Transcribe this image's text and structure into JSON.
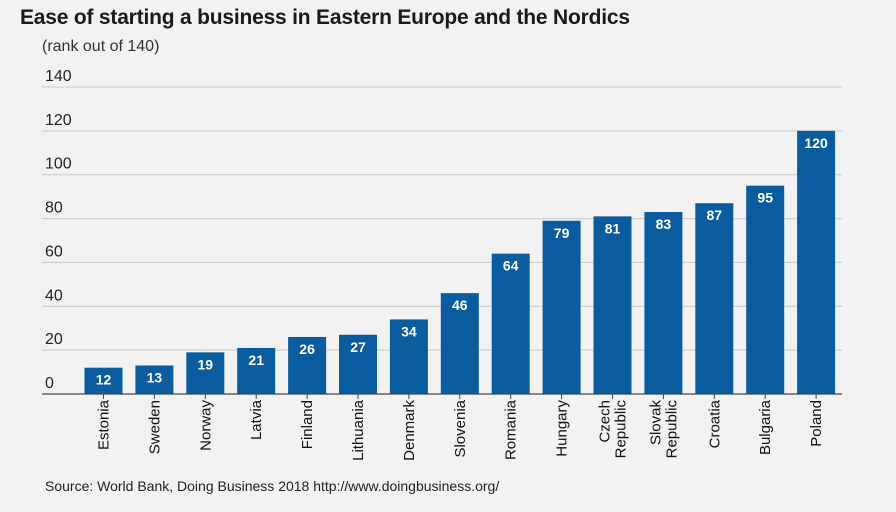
{
  "title": "Ease of starting a business in Eastern Europe and the Nordics",
  "subtitle": "(rank out of 140)",
  "source": "Source: World Bank, Doing Business 2018 http://www.doingbusiness.org/",
  "colors": {
    "bar": "#0b5c9e",
    "grid": "#c8c8c8",
    "axis": "#444444",
    "background": "#f2f2f2"
  },
  "chart_data": {
    "type": "bar",
    "title": "Ease of starting a business in Eastern Europe and the Nordics",
    "subtitle": "(rank out of 140)",
    "xlabel": "",
    "ylabel": "",
    "ylim": [
      0,
      140
    ],
    "yticks": [
      0,
      20,
      40,
      60,
      80,
      100,
      120,
      140
    ],
    "grid": true,
    "categories": [
      [
        "Estonia"
      ],
      [
        "Sweden"
      ],
      [
        "Norway"
      ],
      [
        "Latvia"
      ],
      [
        "Finland"
      ],
      [
        "Lithuania"
      ],
      [
        "Denmark"
      ],
      [
        "Slovenia"
      ],
      [
        "Romania"
      ],
      [
        "Hungary"
      ],
      [
        "Czech",
        "Republic"
      ],
      [
        "Slovak",
        "Republic"
      ],
      [
        "Croatia"
      ],
      [
        "Bulgaria"
      ],
      [
        "Poland"
      ]
    ],
    "values": [
      12,
      13,
      19,
      21,
      26,
      27,
      34,
      46,
      64,
      79,
      81,
      83,
      87,
      95,
      120
    ]
  }
}
